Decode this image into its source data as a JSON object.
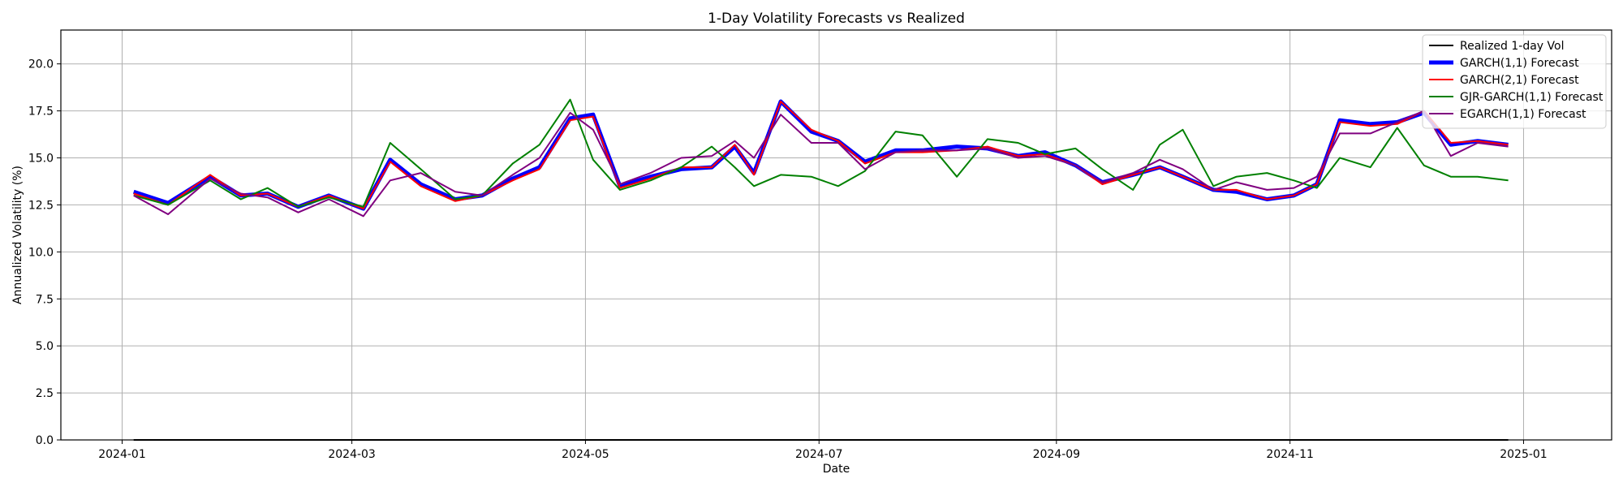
{
  "chart_data": {
    "type": "line",
    "title": "1-Day Volatility Forecasts vs Realized",
    "xlabel": "Date",
    "ylabel": "Annualized Volatility (%)",
    "ylim": [
      0,
      21.8
    ],
    "xlim": [
      "2023-12-16",
      "2025-01-24"
    ],
    "grid": true,
    "legend_position": "top-right",
    "x_ticks": [
      "2024-01-01",
      "2024-03-01",
      "2024-05-01",
      "2024-07-01",
      "2024-09-01",
      "2024-11-01",
      "2025-01-01"
    ],
    "x_tick_labels": [
      "2024-01",
      "2024-03",
      "2024-05",
      "2024-07",
      "2024-09",
      "2024-11",
      "2025-01"
    ],
    "y_ticks": [
      0.0,
      2.5,
      5.0,
      7.5,
      10.0,
      12.5,
      15.0,
      17.5,
      20.0
    ],
    "y_tick_labels": [
      "0.0",
      "2.5",
      "5.0",
      "7.5",
      "10.0",
      "12.5",
      "15.0",
      "17.5",
      "20.0"
    ],
    "x": [
      "2024-01-04",
      "2024-01-13",
      "2024-01-24",
      "2024-02-01",
      "2024-02-08",
      "2024-02-16",
      "2024-02-24",
      "2024-03-04",
      "2024-03-11",
      "2024-03-19",
      "2024-03-28",
      "2024-04-04",
      "2024-04-12",
      "2024-04-19",
      "2024-04-27",
      "2024-05-03",
      "2024-05-10",
      "2024-05-18",
      "2024-05-26",
      "2024-06-03",
      "2024-06-09",
      "2024-06-14",
      "2024-06-21",
      "2024-06-29",
      "2024-07-06",
      "2024-07-13",
      "2024-07-21",
      "2024-07-28",
      "2024-08-06",
      "2024-08-14",
      "2024-08-22",
      "2024-08-29",
      "2024-09-06",
      "2024-09-13",
      "2024-09-21",
      "2024-09-28",
      "2024-10-04",
      "2024-10-12",
      "2024-10-18",
      "2024-10-26",
      "2024-11-02",
      "2024-11-08",
      "2024-11-14",
      "2024-11-22",
      "2024-11-29",
      "2024-12-06",
      "2024-12-13",
      "2024-12-20",
      "2024-12-28"
    ],
    "series": [
      {
        "name": "Realized 1-day Vol",
        "color": "#000000",
        "width": 2,
        "values": [
          0,
          0,
          0,
          0,
          0,
          0,
          0,
          0,
          0,
          0,
          0,
          0,
          0,
          0,
          0,
          0,
          0,
          0,
          0,
          0,
          0,
          0,
          0,
          0,
          0,
          0,
          0,
          0,
          0,
          0,
          0,
          0,
          0,
          0,
          0,
          0,
          0,
          0,
          0,
          0,
          0,
          0,
          0,
          0,
          0,
          0,
          0,
          0,
          0
        ]
      },
      {
        "name": "GARCH(1,1) Forecast",
        "color": "#0000ff",
        "width": 5,
        "values": [
          13.2,
          12.6,
          14.0,
          13.0,
          13.1,
          12.4,
          13.0,
          12.3,
          14.9,
          13.6,
          12.8,
          13.0,
          13.9,
          14.5,
          17.1,
          17.3,
          13.5,
          14.0,
          14.4,
          14.5,
          15.6,
          14.2,
          18.0,
          16.4,
          15.9,
          14.8,
          15.4,
          15.4,
          15.6,
          15.5,
          15.1,
          15.3,
          14.6,
          13.7,
          14.1,
          14.5,
          14.0,
          13.3,
          13.2,
          12.8,
          13.0,
          13.6,
          17.0,
          16.8,
          16.9,
          17.4,
          15.7,
          15.9,
          15.7
        ]
      },
      {
        "name": "GARCH(2,1) Forecast",
        "color": "#ff0000",
        "width": 2,
        "values": [
          13.1,
          12.5,
          14.1,
          13.0,
          13.1,
          12.4,
          13.0,
          12.3,
          14.8,
          13.5,
          12.7,
          13.0,
          13.8,
          14.4,
          17.0,
          17.2,
          13.4,
          13.9,
          14.5,
          14.5,
          15.7,
          14.1,
          18.0,
          16.5,
          15.9,
          14.7,
          15.3,
          15.3,
          15.4,
          15.6,
          15.1,
          15.2,
          14.6,
          13.6,
          14.1,
          14.5,
          14.0,
          13.3,
          13.3,
          12.8,
          13.0,
          13.6,
          16.9,
          16.7,
          16.8,
          17.5,
          15.8,
          15.9,
          15.7
        ]
      },
      {
        "name": "GJR-GARCH(1,1) Forecast",
        "color": "#008000",
        "width": 2,
        "values": [
          13.0,
          12.5,
          13.8,
          12.8,
          13.4,
          12.4,
          12.9,
          12.4,
          15.8,
          14.4,
          12.8,
          13.0,
          14.7,
          15.7,
          18.1,
          14.9,
          13.3,
          13.8,
          14.5,
          15.6,
          14.5,
          13.5,
          14.1,
          14.0,
          13.5,
          14.3,
          16.4,
          16.2,
          14.0,
          16.0,
          15.8,
          15.2,
          15.5,
          14.4,
          13.3,
          15.7,
          16.5,
          13.5,
          14.0,
          14.2,
          13.8,
          13.4,
          15.0,
          14.5,
          16.6,
          14.6,
          14.0,
          14.0,
          13.8
        ]
      },
      {
        "name": "EGARCH(1,1) Forecast",
        "color": "#800080",
        "width": 2,
        "values": [
          13.0,
          12.0,
          13.9,
          13.1,
          12.9,
          12.1,
          12.8,
          11.9,
          13.8,
          14.2,
          13.2,
          13.0,
          14.1,
          15.0,
          17.4,
          16.5,
          13.6,
          14.2,
          15.0,
          15.1,
          15.9,
          15.0,
          17.3,
          15.8,
          15.8,
          14.4,
          15.3,
          15.4,
          15.4,
          15.5,
          15.0,
          15.1,
          14.6,
          13.7,
          14.2,
          14.9,
          14.4,
          13.3,
          13.7,
          13.3,
          13.4,
          14.0,
          16.3,
          16.3,
          16.9,
          17.5,
          15.1,
          15.8,
          15.6
        ]
      }
    ]
  }
}
